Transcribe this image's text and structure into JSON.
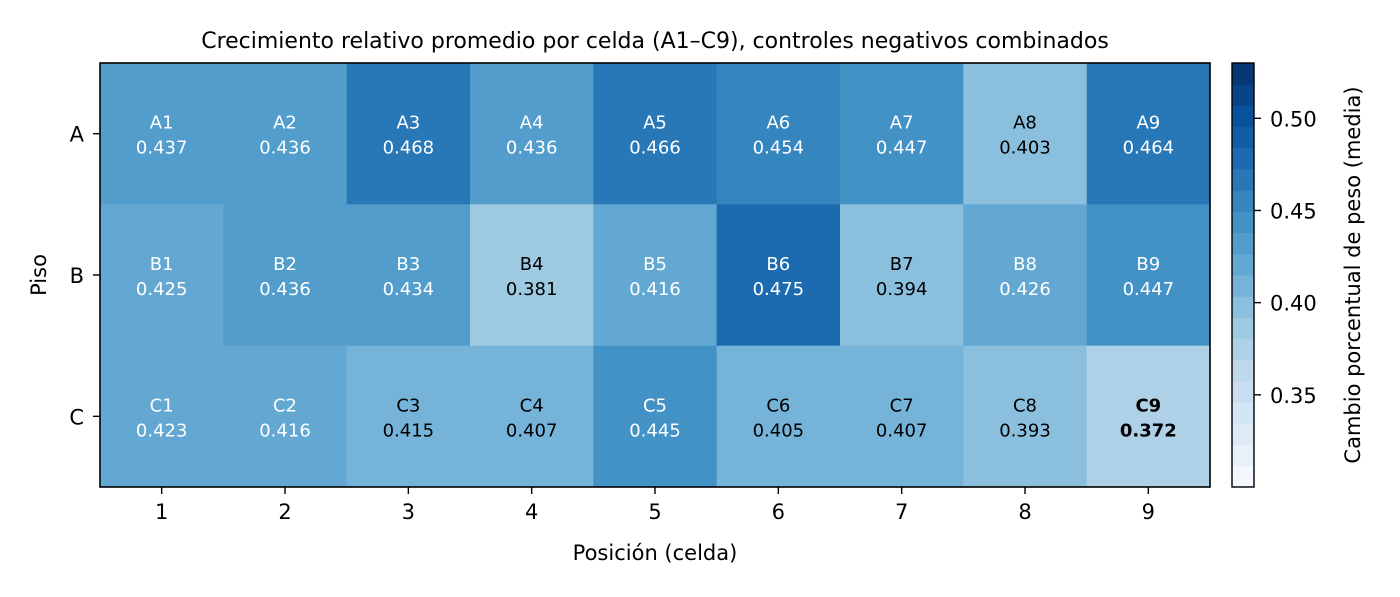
{
  "chart_data": {
    "type": "heatmap",
    "title": "Crecimiento relativo promedio por celda (A1–C9), controles negativos combinados",
    "xlabel": "Posición (celda)",
    "ylabel": "Piso",
    "x_categories": [
      "1",
      "2",
      "3",
      "4",
      "5",
      "6",
      "7",
      "8",
      "9"
    ],
    "y_categories": [
      "A",
      "B",
      "C"
    ],
    "rows": [
      {
        "floor": "A",
        "labels": [
          "A1",
          "A2",
          "A3",
          "A4",
          "A5",
          "A6",
          "A7",
          "A8",
          "A9"
        ],
        "values": [
          0.437,
          0.436,
          0.468,
          0.436,
          0.466,
          0.454,
          0.447,
          0.403,
          0.464
        ]
      },
      {
        "floor": "B",
        "labels": [
          "B1",
          "B2",
          "B3",
          "B4",
          "B5",
          "B6",
          "B7",
          "B8",
          "B9"
        ],
        "values": [
          0.425,
          0.436,
          0.434,
          0.381,
          0.416,
          0.475,
          0.394,
          0.426,
          0.447
        ]
      },
      {
        "floor": "C",
        "labels": [
          "C1",
          "C2",
          "C3",
          "C4",
          "C5",
          "C6",
          "C7",
          "C8",
          "C9"
        ],
        "values": [
          0.423,
          0.416,
          0.415,
          0.407,
          0.445,
          0.405,
          0.407,
          0.393,
          0.372
        ]
      }
    ],
    "highlight": {
      "label": "C9",
      "value": "0.372"
    },
    "colorbar": {
      "label": "Cambio porcentual de peso (media)",
      "range": [
        0.3,
        0.53
      ],
      "levels": 20,
      "ticks": [
        0.35,
        0.4,
        0.45,
        0.5
      ],
      "tick_labels": [
        "0.35",
        "0.40",
        "0.45",
        "0.50"
      ],
      "colormap": "Blues"
    },
    "grid": false
  }
}
